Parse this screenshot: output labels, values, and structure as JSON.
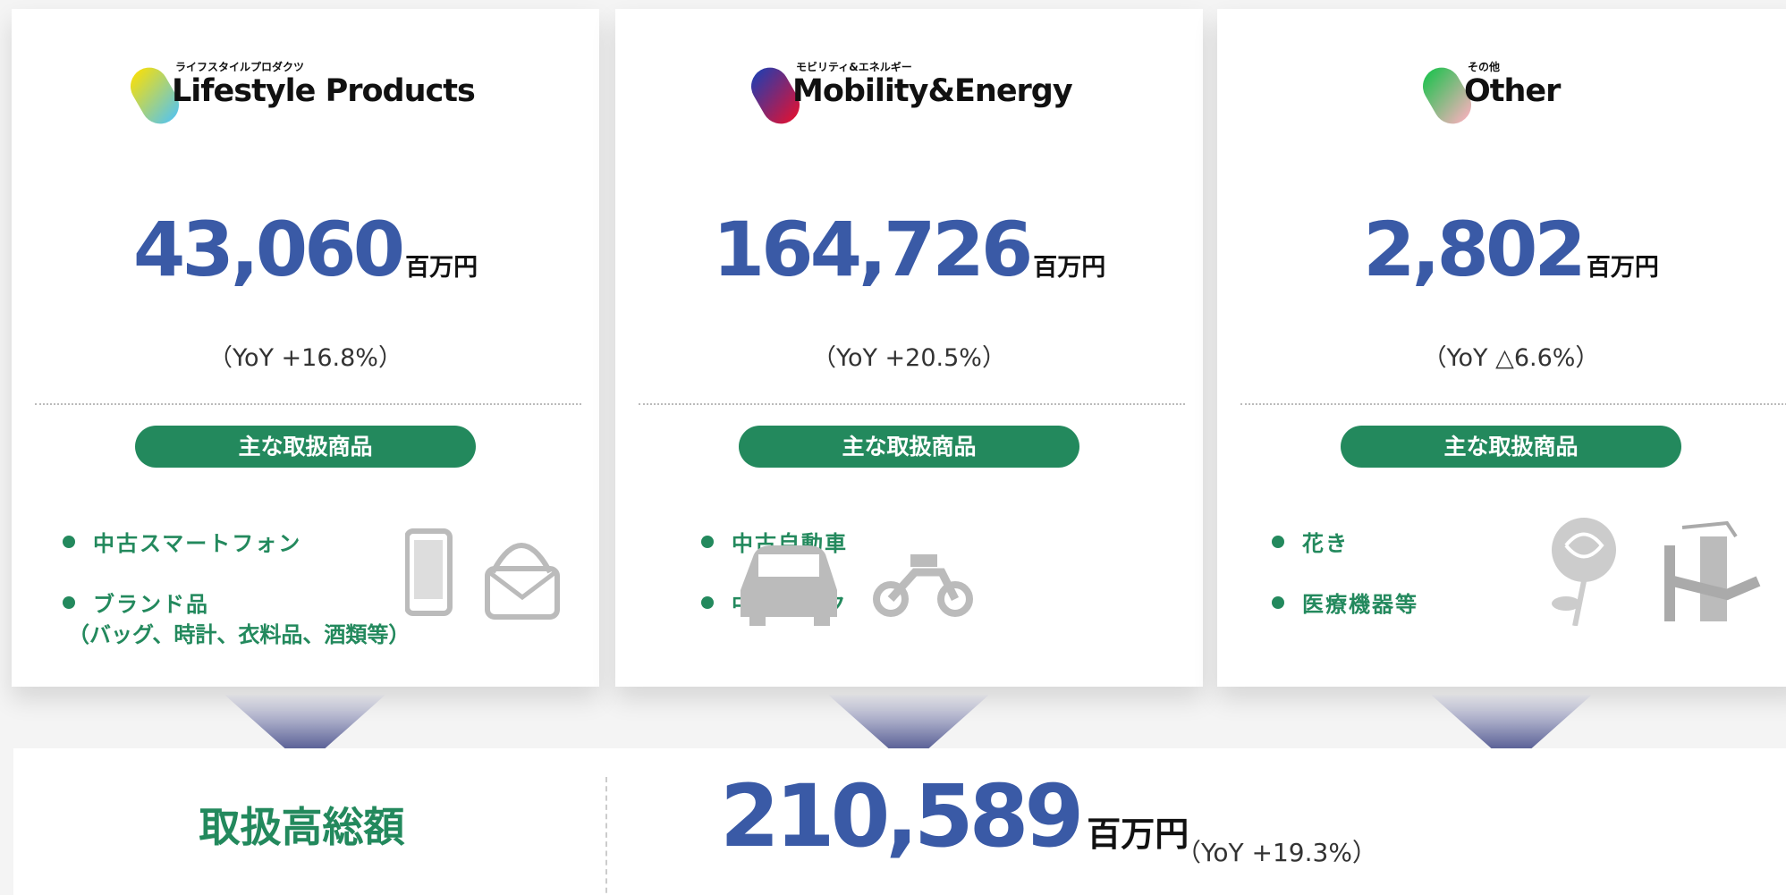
{
  "segments": [
    {
      "label_small": "ライフスタイルプロダクツ",
      "label_large": "Lifestyle Products",
      "amount": "43,060",
      "unit": "百万円",
      "yoy": "（YoY +16.8%）",
      "products_heading": "主な取扱商品",
      "products": [
        {
          "name": "中古スマートフォン"
        },
        {
          "name": "ブランド品",
          "note": "（バッグ、時計、衣料品、酒類等）"
        }
      ]
    },
    {
      "label_small": "モビリティ&エネルギー",
      "label_large": "Mobility&Energy",
      "amount": "164,726",
      "unit": "百万円",
      "yoy": "（YoY +20.5%）",
      "products_heading": "主な取扱商品",
      "products": [
        {
          "name": "中古自動車"
        },
        {
          "name": "中古バイク"
        }
      ]
    },
    {
      "label_small": "その他",
      "label_large": "Other",
      "amount": "2,802",
      "unit": "百万円",
      "yoy": "（YoY △6.6%）",
      "products_heading": "主な取扱商品",
      "products": [
        {
          "name": "花き"
        },
        {
          "name": "医療機器等"
        }
      ]
    }
  ],
  "total": {
    "label": "取扱高総額",
    "amount": "210,589",
    "unit": "百万円",
    "yoy": "（YoY +19.3%）"
  }
}
